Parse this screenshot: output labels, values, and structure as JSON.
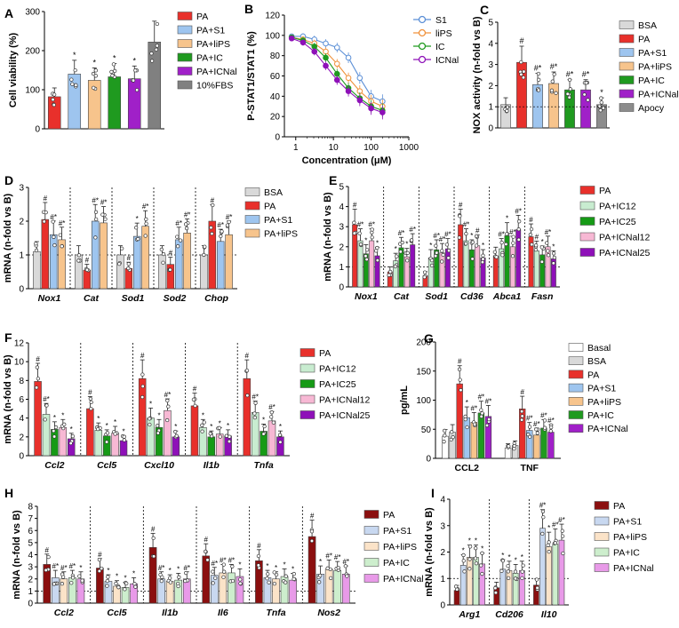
{
  "colors": {
    "BSA": "#d9d9d9",
    "PA": "#e8302b",
    "PA+S1": "#9ec5ef",
    "PA+liPS": "#f7c48c",
    "PA+IC": "#1f9a1f",
    "PA+ICNal": "#a020c8",
    "10%FBS": "#808080",
    "Apocy": "#8c8c8c",
    "PA+IC12": "#c8ecd0",
    "PA+IC25": "#169a16",
    "PA+ICNal12": "#f7b8d4",
    "PA+ICNal25": "#8e10b8",
    "Basal": "#ffffff",
    "H_PA": "#8b0f0f",
    "H_S1": "#c8d8f0",
    "H_liPS": "#fbe3c8",
    "H_IC": "#cdeecd",
    "H_ICNal": "#e89ae8",
    "S1_line": "#5b8fd6",
    "liPS_line": "#f0913a",
    "IC_line": "#1f9a1f",
    "ICNal_line": "#8e10b8"
  },
  "chart_data": [
    {
      "panel": "A",
      "type": "bar",
      "ylabel": "Cell viability (%)",
      "ylim": [
        0,
        300
      ],
      "yticks": [
        0,
        100,
        200,
        300
      ],
      "legend": [
        "PA",
        "PA+S1",
        "PA+liPS",
        "PA+IC",
        "PA+ICNal",
        "10%FBS"
      ],
      "values": [
        82,
        140,
        124,
        133,
        128,
        222
      ],
      "marks": [
        "",
        "*",
        "*",
        "*",
        "*",
        ""
      ]
    },
    {
      "panel": "B",
      "type": "line",
      "xlabel": "Concentration (μM)",
      "ylabel": "P-STAT1/STAT1 (%)",
      "xscale": "log",
      "xlim": [
        0.5,
        1000
      ],
      "xticks": [
        1,
        10,
        100,
        1000
      ],
      "xtick_labels": [
        "1",
        "10",
        "100",
        "1000"
      ],
      "ylim": [
        0,
        120
      ],
      "yticks": [
        0,
        20,
        40,
        60,
        80,
        100,
        120
      ],
      "x": [
        0.78,
        1.56,
        3.125,
        6.25,
        12.5,
        25,
        50,
        100,
        200
      ],
      "series": [
        {
          "name": "S1",
          "values": [
            99,
            99,
            96,
            92,
            88,
            78,
            58,
            40,
            35
          ]
        },
        {
          "name": "liPS",
          "values": [
            98,
            96,
            92,
            84,
            72,
            58,
            45,
            35,
            30
          ]
        },
        {
          "name": "IC",
          "values": [
            98,
            95,
            89,
            78,
            62,
            48,
            38,
            30,
            26
          ]
        },
        {
          "name": "ICNal",
          "values": [
            97,
            93,
            84,
            70,
            56,
            45,
            36,
            28,
            24
          ]
        }
      ]
    },
    {
      "panel": "C",
      "type": "bar",
      "ylabel": "NOX activity (n-fold vs B)",
      "ylim": [
        0,
        5
      ],
      "yticks": [
        0,
        1,
        2,
        3,
        4,
        5
      ],
      "legend": [
        "BSA",
        "PA",
        "PA+S1",
        "PA+liPS",
        "PA+IC",
        "PA+ICNal",
        "Apocy"
      ],
      "values": [
        1.1,
        3.1,
        2.05,
        2.1,
        1.8,
        1.8,
        1.1
      ],
      "marks": [
        "",
        "#",
        "#*",
        "#*",
        "#*",
        "#*",
        "*"
      ]
    },
    {
      "panel": "D",
      "type": "grouped-bar",
      "ylabel": "mRNA (n-fold vs B)",
      "ylim": [
        0,
        3
      ],
      "yticks": [
        0,
        1,
        2,
        3
      ],
      "categories": [
        "Nox1",
        "Cat",
        "Sod1",
        "Sod2",
        "Chop"
      ],
      "series": [
        {
          "name": "BSA",
          "values": [
            1.1,
            1.0,
            1.0,
            1.0,
            1.0
          ]
        },
        {
          "name": "PA",
          "values": [
            2.05,
            0.55,
            0.6,
            0.72,
            2.0
          ]
        },
        {
          "name": "PA+S1",
          "values": [
            1.6,
            2.0,
            1.55,
            1.45,
            1.4
          ]
        },
        {
          "name": "PA+liPS",
          "values": [
            1.45,
            1.95,
            1.85,
            1.65,
            1.6
          ]
        }
      ],
      "marks": [
        [
          "",
          "#",
          "#*",
          "#*"
        ],
        [
          "",
          "#",
          "#*",
          "#*"
        ],
        [
          "",
          "#",
          "*",
          "#*"
        ],
        [
          "",
          "#",
          "#*",
          "#*"
        ],
        [
          "",
          "#",
          "#*",
          "#*"
        ]
      ]
    },
    {
      "panel": "E",
      "type": "grouped-bar",
      "ylabel": "mRNA (n-fold vs B)",
      "ylim": [
        0,
        5
      ],
      "yticks": [
        0,
        1,
        2,
        3,
        4,
        5
      ],
      "categories": [
        "Nox1",
        "Cat",
        "Sod1",
        "Cd36",
        "Abca1",
        "Fasn"
      ],
      "series": [
        {
          "name": "PA",
          "values": [
            3.1,
            0.75,
            0.55,
            3.1,
            1.55,
            2.5
          ]
        },
        {
          "name": "PA+IC12",
          "values": [
            2.3,
            1.3,
            1.45,
            2.3,
            1.9,
            1.8
          ]
        },
        {
          "name": "PA+IC25",
          "values": [
            1.65,
            1.95,
            1.85,
            1.85,
            2.55,
            1.6
          ]
        },
        {
          "name": "PA+ICNal12",
          "values": [
            2.3,
            1.5,
            1.7,
            2.05,
            2.0,
            2.0
          ]
        },
        {
          "name": "PA+ICNal25",
          "values": [
            1.55,
            2.1,
            1.9,
            1.45,
            2.85,
            1.4
          ]
        }
      ],
      "marks": [
        [
          "#",
          "#*",
          "*",
          "#*",
          "*"
        ],
        [
          "",
          "*",
          "#*",
          "*",
          "#*"
        ],
        [
          "",
          "*",
          "#*",
          "#*",
          "#*"
        ],
        [
          "#",
          "#*",
          "*",
          "#",
          "*"
        ],
        [
          "",
          "#*",
          "*",
          "#*",
          "#*"
        ],
        [
          "#",
          "#",
          "*",
          "#*",
          "*"
        ]
      ]
    },
    {
      "panel": "F",
      "type": "grouped-bar",
      "ylabel": "mRNA (n-fold vs B)",
      "ylim": [
        0,
        12
      ],
      "yticks": [
        0,
        2,
        4,
        6,
        8,
        10,
        12
      ],
      "categories": [
        "Ccl2",
        "Ccl5",
        "Cxcl10",
        "Il1b",
        "Tnfa"
      ],
      "series": [
        {
          "name": "PA",
          "values": [
            7.9,
            5.0,
            8.2,
            5.3,
            8.2
          ]
        },
        {
          "name": "PA+IC12",
          "values": [
            4.4,
            2.7,
            4.0,
            3.0,
            4.6
          ]
        },
        {
          "name": "PA+IC25",
          "values": [
            2.8,
            2.1,
            3.0,
            2.0,
            2.6
          ]
        },
        {
          "name": "PA+ICNal12",
          "values": [
            3.0,
            2.4,
            4.8,
            2.3,
            3.7
          ]
        },
        {
          "name": "PA+ICNal25",
          "values": [
            1.8,
            1.6,
            2.0,
            2.1,
            2.0
          ]
        }
      ],
      "marks": [
        [
          "#",
          "#*",
          "*",
          "*",
          "*"
        ],
        [
          "#",
          "*",
          "*",
          "*",
          "*"
        ],
        [
          "#",
          "*",
          "*",
          "#*",
          "*"
        ],
        [
          "#",
          "*",
          "*",
          "*",
          "*"
        ],
        [
          "#",
          "#*",
          "*",
          "#*",
          "*"
        ]
      ]
    },
    {
      "panel": "G",
      "type": "grouped-bar",
      "ylabel": "pg/mL",
      "ylim": [
        0,
        200
      ],
      "yticks": [
        0,
        50,
        100,
        150,
        200
      ],
      "categories": [
        "CCL2",
        "TNF"
      ],
      "series": [
        {
          "name": "Basal",
          "values": [
            38,
            18
          ]
        },
        {
          "name": "BSA",
          "values": [
            45,
            22
          ]
        },
        {
          "name": "PA",
          "values": [
            128,
            85
          ]
        },
        {
          "name": "PA+S1",
          "values": [
            70,
            48
          ]
        },
        {
          "name": "PA+liPS",
          "values": [
            62,
            40
          ]
        },
        {
          "name": "PA+IC",
          "values": [
            78,
            52
          ]
        },
        {
          "name": "PA+ICNal",
          "values": [
            72,
            45
          ]
        }
      ],
      "marks": [
        [
          "",
          "",
          "#",
          "*",
          "#*",
          "#*",
          "#*"
        ],
        [
          "",
          "",
          "#",
          "#*",
          "#*",
          "#*",
          "#*"
        ]
      ]
    },
    {
      "panel": "H",
      "type": "grouped-bar",
      "ylabel": "mRNA (n-fold vs B)",
      "ylim": [
        0,
        8
      ],
      "yticks": [
        0,
        1,
        2,
        3,
        4,
        5,
        6,
        7,
        8
      ],
      "categories": [
        "Ccl2",
        "Ccl5",
        "Il1b",
        "Il6",
        "Tnfa",
        "Nos2"
      ],
      "series": [
        {
          "name": "PA",
          "values": [
            3.2,
            2.9,
            4.6,
            3.9,
            3.5,
            5.5
          ]
        },
        {
          "name": "PA+S1",
          "values": [
            2.1,
            1.8,
            2.0,
            2.3,
            2.1,
            2.4
          ]
        },
        {
          "name": "PA+liPS",
          "values": [
            2.0,
            1.4,
            1.8,
            2.5,
            2.0,
            2.8
          ]
        },
        {
          "name": "PA+IC",
          "values": [
            2.1,
            1.3,
            1.9,
            2.5,
            2.2,
            2.7
          ]
        },
        {
          "name": "PA+ICNal",
          "values": [
            2.0,
            1.6,
            2.0,
            2.2,
            1.9,
            2.4
          ]
        }
      ],
      "marks": [
        [
          "#",
          "#*",
          "#*",
          "#*",
          "*"
        ],
        [
          "#",
          "*",
          "*",
          "*",
          "*"
        ],
        [
          "#",
          "#*",
          "*",
          "*",
          "#*"
        ],
        [
          "#",
          "#*",
          "#*",
          "#*",
          "*"
        ],
        [
          "#",
          "*",
          "*",
          "*",
          "*"
        ],
        [
          "#",
          "*",
          "#*",
          "#*",
          "#*"
        ]
      ]
    },
    {
      "panel": "I",
      "type": "grouped-bar",
      "ylabel": "mRNA (n-fold vs B)",
      "ylim": [
        0,
        4
      ],
      "yticks": [
        0,
        1,
        2,
        3,
        4
      ],
      "categories": [
        "Arg1",
        "Cd206",
        "Il10"
      ],
      "series": [
        {
          "name": "PA",
          "values": [
            0.55,
            0.65,
            0.75
          ]
        },
        {
          "name": "PA+S1",
          "values": [
            1.5,
            1.35,
            2.9
          ]
        },
        {
          "name": "PA+liPS",
          "values": [
            1.8,
            1.3,
            2.2
          ]
        },
        {
          "name": "PA+IC",
          "values": [
            1.8,
            1.2,
            2.3
          ]
        },
        {
          "name": "PA+ICNal",
          "values": [
            1.55,
            1.3,
            2.45
          ]
        }
      ],
      "marks": [
        [
          "",
          "*",
          "*",
          "*",
          "*"
        ],
        [
          "",
          "*",
          "*",
          "*",
          "*"
        ],
        [
          "",
          "#*",
          "*",
          "#*",
          "#*"
        ]
      ]
    }
  ],
  "panel_letters": [
    "A",
    "B",
    "C",
    "D",
    "E",
    "F",
    "G",
    "H",
    "I"
  ]
}
